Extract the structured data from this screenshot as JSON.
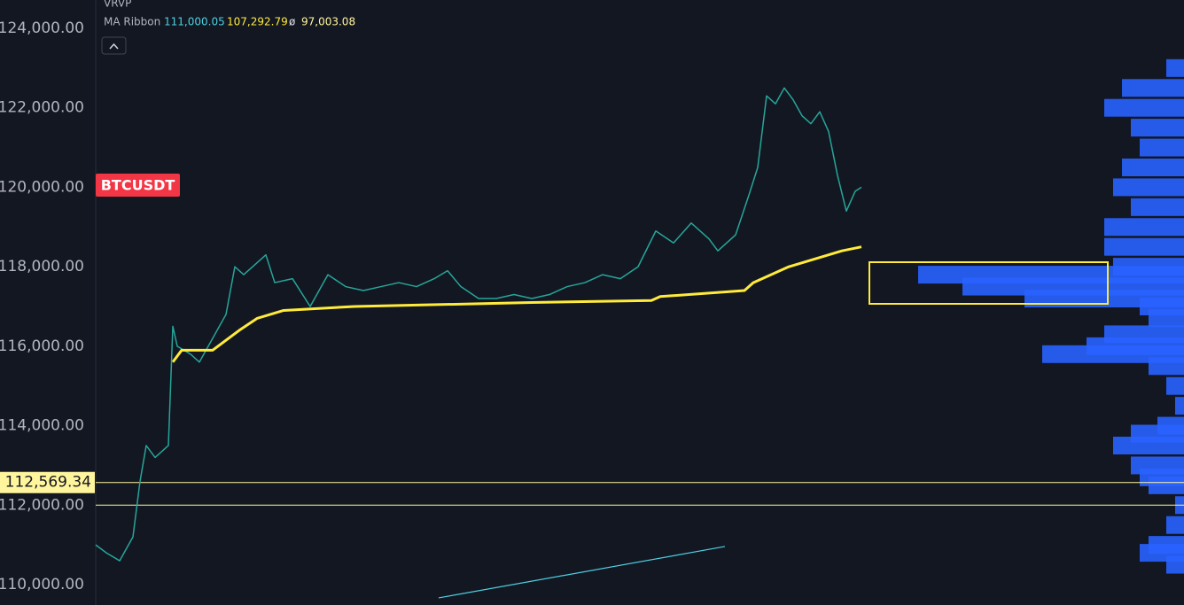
{
  "chart_data": {
    "type": "line",
    "indicator": "VRVP",
    "ma_label": "MA Ribbon",
    "ma_values": [
      "111,000.05",
      "107,292.79",
      "97,003.08"
    ],
    "ma_separator": "ø",
    "symbol": "BTCUSDT",
    "ylim": [
      109487,
      124713
    ],
    "xlim": [
      0,
      307
    ],
    "yticks": [
      {
        "value": 110000,
        "label": "110,000.00"
      },
      {
        "value": 112000,
        "label": "112,000.00"
      },
      {
        "value": 114000,
        "label": "114,000.00"
      },
      {
        "value": 116000,
        "label": "116,000.00"
      },
      {
        "value": 118000,
        "label": "118,000.00"
      },
      {
        "value": 120000,
        "label": "120,000.00"
      },
      {
        "value": 122000,
        "label": "122,000.00"
      },
      {
        "value": 124000,
        "label": "124,000.00"
      }
    ],
    "price_line": {
      "value": 112569.34,
      "label": "112,569.34",
      "color": "#fff59d"
    },
    "level_line": {
      "value": 112000,
      "color": "#fff59d"
    },
    "series": [
      {
        "name": "Price",
        "color": "#26a69a",
        "x": [
          0,
          3,
          6.75,
          10.5,
          12.5,
          14.25,
          16.75,
          20.5,
          21.75,
          23,
          26.75,
          29.25,
          33,
          36.75,
          39.25,
          41.75,
          45.5,
          48,
          50.5,
          55.5,
          60.5,
          65.5,
          70.5,
          75.5,
          80.5,
          85.5,
          90.5,
          95.5,
          99.25,
          103,
          108,
          113,
          118,
          123,
          128,
          133,
          138,
          143,
          148,
          153,
          158,
          163,
          168,
          173,
          175.5,
          180.5,
          184.25,
          186.75,
          189.25,
          191.75,
          194.25,
          196.75,
          199.25,
          201.75,
          204.25,
          206.75,
          209.25,
          211.75,
          214.25,
          216
        ],
        "values": [
          111000,
          110800,
          110600,
          111200,
          112600,
          113500,
          113200,
          113500,
          116500,
          116000,
          115800,
          115600,
          116200,
          116800,
          118000,
          117800,
          118100,
          118300,
          117600,
          117700,
          117000,
          117800,
          117500,
          117400,
          117500,
          117600,
          117500,
          117700,
          117900,
          117500,
          117200,
          117200,
          117300,
          117200,
          117300,
          117500,
          117600,
          117800,
          117700,
          118000,
          118900,
          118600,
          119100,
          118700,
          118400,
          118800,
          119800,
          120500,
          122300,
          122100,
          122500,
          122200,
          121800,
          121600,
          121900,
          121400,
          120300,
          119400,
          119900,
          120000
        ]
      },
      {
        "name": "MA",
        "color": "#ffeb3b",
        "x": [
          21.75,
          24.25,
          33,
          40.5,
          45.5,
          53,
          73,
          123,
          156.75,
          159.25,
          183,
          185.5,
          190.5,
          195.5,
          203,
          210.5,
          216
        ],
        "values": [
          115600,
          115900,
          115900,
          116400,
          116700,
          116900,
          117000,
          117100,
          117150,
          117250,
          117400,
          117600,
          117800,
          118000,
          118200,
          118400,
          118500
        ]
      },
      {
        "name": "Trend",
        "color": "#4dd0e1",
        "x": [
          96.75,
          177.5
        ],
        "values": [
          109666,
          110959
        ]
      }
    ],
    "profile": {
      "color": "#2962ff",
      "levels": [
        123000,
        122500,
        122000,
        121500,
        121000,
        120500,
        120000,
        119500,
        119000,
        118500,
        118000,
        117800,
        117500,
        117200,
        117000,
        116700,
        116300,
        116000,
        115800,
        115500,
        115000,
        114500,
        114000,
        113800,
        113500,
        113000,
        112700,
        112500,
        112000,
        111500,
        111000,
        110800,
        110500
      ],
      "volumes": [
        20,
        70,
        90,
        60,
        50,
        70,
        80,
        60,
        90,
        90,
        80,
        300,
        250,
        180,
        50,
        40,
        90,
        110,
        160,
        40,
        20,
        10,
        30,
        60,
        80,
        60,
        50,
        40,
        10,
        20,
        40,
        50,
        20
      ]
    }
  }
}
